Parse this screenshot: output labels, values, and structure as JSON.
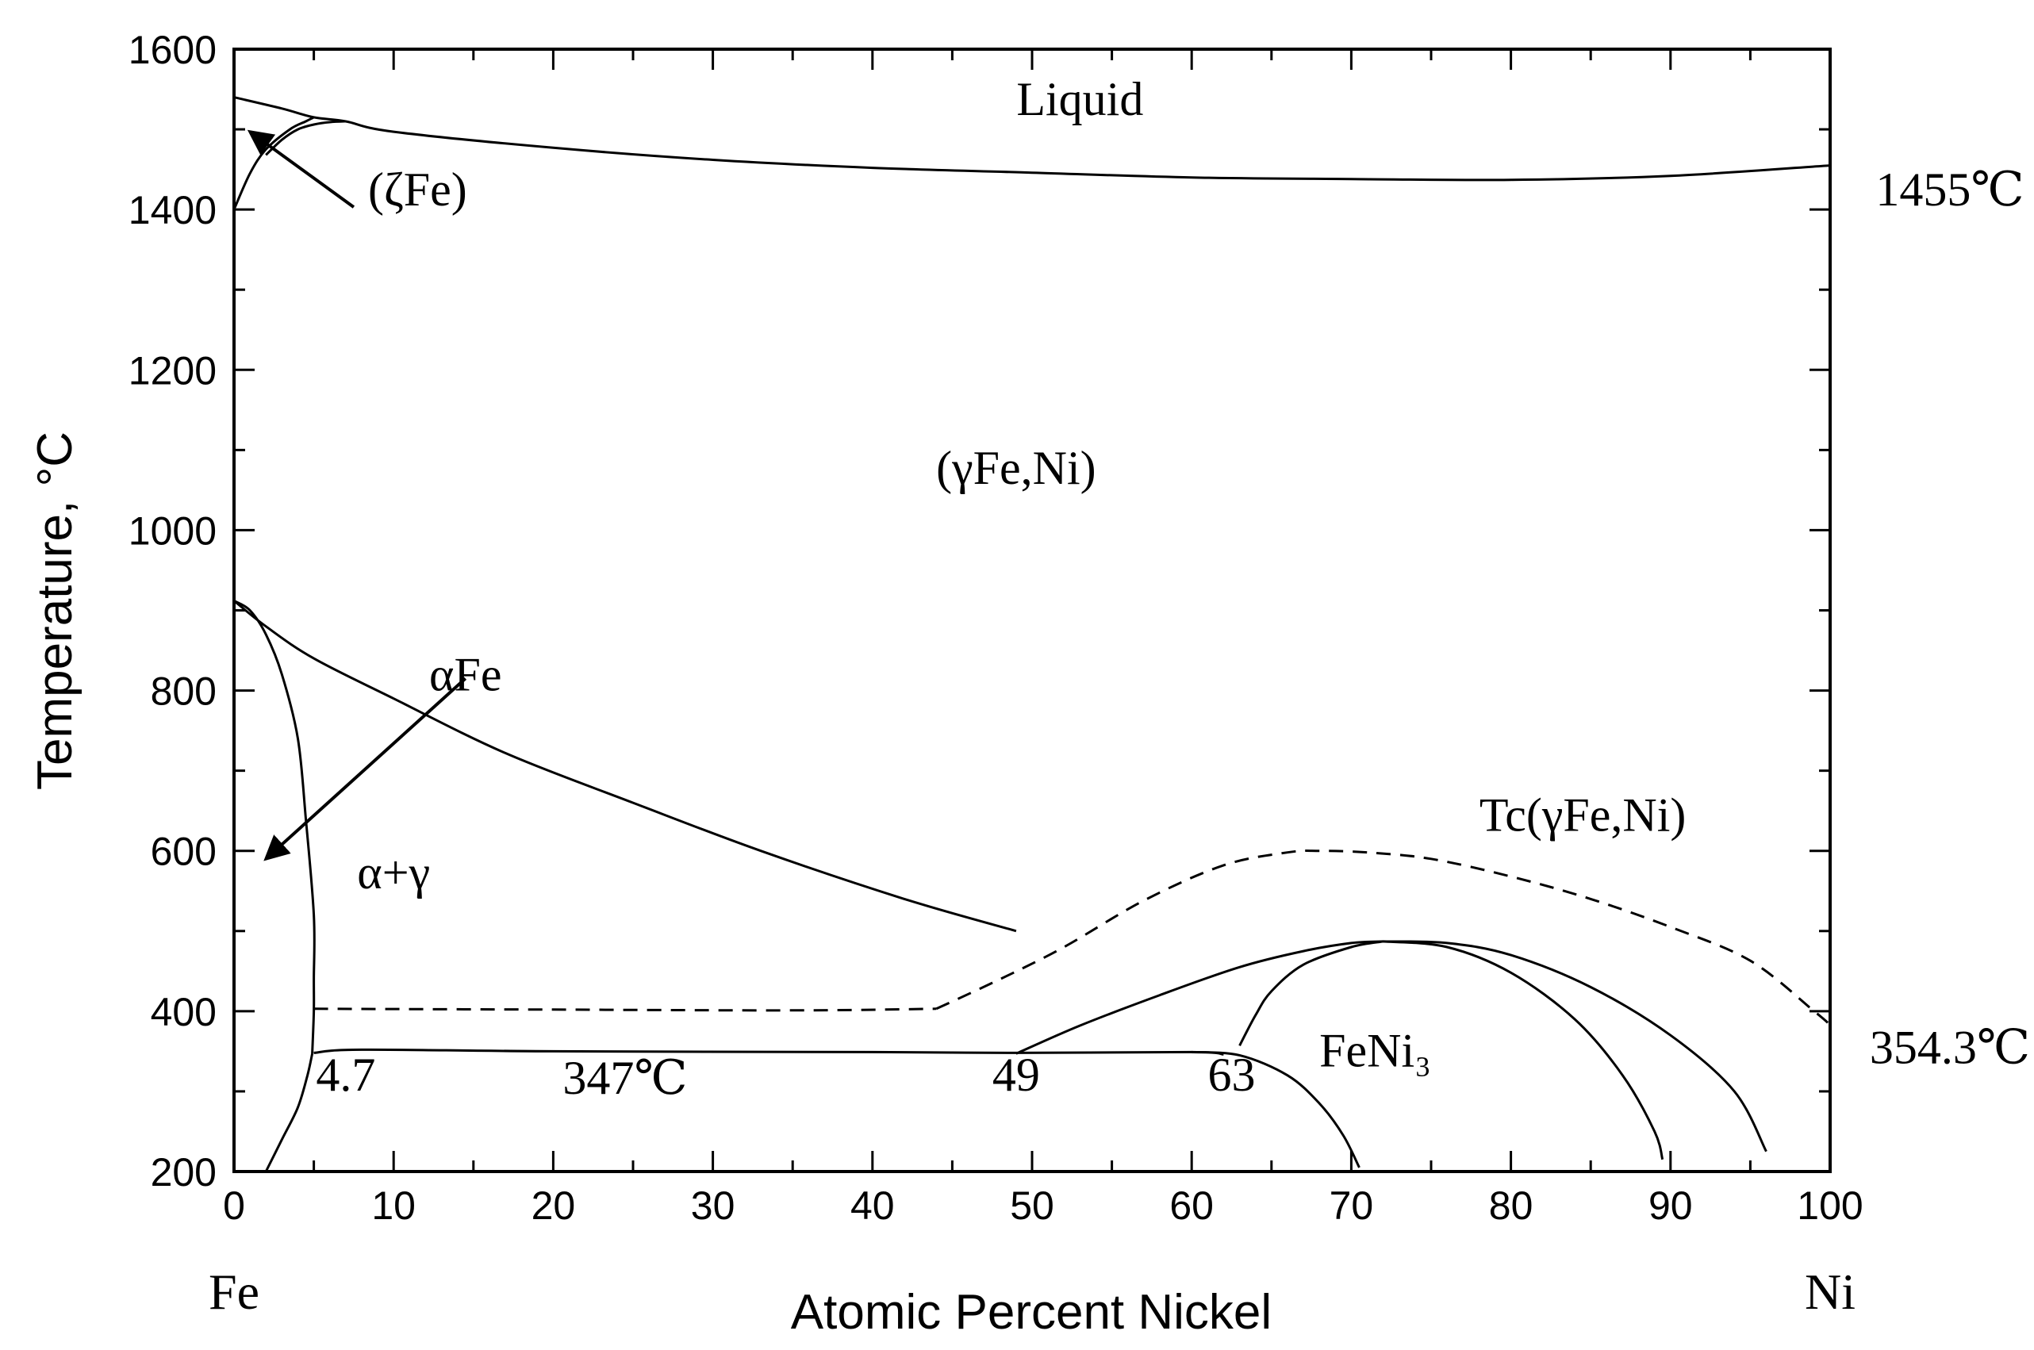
{
  "chart_data": {
    "type": "line",
    "xlabel": "Atomic Percent Nickel",
    "ylabel": "Temperature, °C",
    "xlim": [
      0,
      100
    ],
    "ylim": [
      200,
      1600
    ],
    "x_ticks": [
      0,
      10,
      20,
      30,
      40,
      50,
      60,
      70,
      80,
      90,
      100
    ],
    "y_ticks": [
      200,
      400,
      600,
      800,
      1000,
      1200,
      1400,
      1600
    ],
    "end_labels": {
      "left": "Fe",
      "right": "Ni"
    },
    "grid": false,
    "series": [
      {
        "style": "solid",
        "points": [
          [
            0,
            1540
          ],
          [
            3,
            1526
          ],
          [
            5,
            1515
          ],
          [
            7,
            1510
          ],
          [
            10,
            1497
          ],
          [
            20,
            1477
          ],
          [
            30,
            1462
          ],
          [
            40,
            1452
          ],
          [
            50,
            1446
          ],
          [
            60,
            1440
          ],
          [
            70,
            1438
          ],
          [
            80,
            1437
          ],
          [
            90,
            1442
          ],
          [
            100,
            1455
          ]
        ]
      },
      {
        "style": "solid",
        "points": [
          [
            5,
            1515
          ],
          [
            4.5,
            1510
          ],
          [
            3.5,
            1500
          ],
          [
            2,
            1475
          ],
          [
            1,
            1445
          ],
          [
            0,
            1400
          ]
        ]
      },
      {
        "style": "solid",
        "points": [
          [
            7,
            1510
          ],
          [
            6,
            1509
          ],
          [
            5,
            1506
          ],
          [
            4,
            1500
          ],
          [
            3,
            1487
          ],
          [
            2,
            1468
          ]
        ]
      },
      {
        "style": "solid",
        "points": [
          [
            0,
            912
          ],
          [
            2,
            880
          ],
          [
            5,
            840
          ],
          [
            10,
            790
          ],
          [
            17,
            722
          ],
          [
            25,
            660
          ],
          [
            33,
            600
          ],
          [
            42,
            540
          ],
          [
            49,
            500
          ]
        ]
      },
      {
        "style": "solid",
        "points": [
          [
            0,
            912
          ],
          [
            1,
            900
          ],
          [
            2,
            870
          ],
          [
            3,
            820
          ],
          [
            4,
            740
          ],
          [
            4.5,
            640
          ],
          [
            5,
            520
          ],
          [
            5,
            440
          ],
          [
            5,
            400
          ],
          [
            4.9,
            347
          ]
        ]
      },
      {
        "style": "solid",
        "points": [
          [
            4.9,
            347
          ],
          [
            4.6,
            320
          ],
          [
            4,
            280
          ],
          [
            3,
            240
          ],
          [
            2,
            200
          ]
        ]
      },
      {
        "style": "solid",
        "points": [
          [
            5,
            348
          ],
          [
            8,
            352
          ],
          [
            20,
            350
          ],
          [
            40,
            349
          ],
          [
            49,
            348
          ],
          [
            60,
            349
          ],
          [
            62,
            346
          ]
        ]
      },
      {
        "style": "solid",
        "points": [
          [
            49,
            347
          ],
          [
            53,
            382
          ],
          [
            58,
            420
          ],
          [
            63,
            455
          ],
          [
            67,
            475
          ],
          [
            70,
            485
          ],
          [
            72,
            487
          ]
        ]
      },
      {
        "style": "solid",
        "points": [
          [
            63,
            357
          ],
          [
            64,
            395
          ],
          [
            65,
            425
          ],
          [
            67,
            458
          ],
          [
            70,
            480
          ],
          [
            72,
            487
          ]
        ]
      },
      {
        "style": "solid",
        "points": [
          [
            72,
            487
          ],
          [
            76,
            480
          ],
          [
            80,
            448
          ],
          [
            84,
            390
          ],
          [
            87,
            320
          ],
          [
            89,
            250
          ],
          [
            89.5,
            215
          ]
        ]
      },
      {
        "style": "solid",
        "points": [
          [
            72,
            487
          ],
          [
            76,
            485
          ],
          [
            80,
            470
          ],
          [
            85,
            430
          ],
          [
            90,
            370
          ],
          [
            94,
            300
          ],
          [
            96,
            225
          ]
        ]
      },
      {
        "style": "solid",
        "points": [
          [
            60,
            349
          ],
          [
            63,
            345
          ],
          [
            66,
            320
          ],
          [
            68,
            285
          ],
          [
            69.5,
            245
          ],
          [
            70.5,
            205
          ]
        ]
      },
      {
        "style": "dashed",
        "points": [
          [
            5,
            403
          ],
          [
            20,
            402
          ],
          [
            35,
            401
          ],
          [
            44,
            403
          ]
        ]
      },
      {
        "style": "dashed",
        "points": [
          [
            44,
            403
          ],
          [
            48,
            440
          ],
          [
            52,
            480
          ],
          [
            57,
            538
          ],
          [
            62,
            582
          ],
          [
            66,
            598
          ],
          [
            68,
            600
          ],
          [
            71,
            598
          ],
          [
            75,
            590
          ],
          [
            80,
            568
          ],
          [
            85,
            540
          ],
          [
            90,
            505
          ],
          [
            95,
            463
          ],
          [
            99,
            400
          ],
          [
            100,
            383
          ]
        ]
      }
    ],
    "annotations": [
      {
        "text": "Liquid",
        "x": 53,
        "y": 1518
      },
      {
        "text": "(ζFe)",
        "x": 11.5,
        "y": 1405
      },
      {
        "text": "(γFe,Ni)",
        "x": 49,
        "y": 1058
      },
      {
        "text": "αFe",
        "x": 14.5,
        "y": 800
      },
      {
        "text": "α+γ",
        "x": 10,
        "y": 553
      },
      {
        "text": "Tc(γFe,Ni)",
        "x": 84.5,
        "y": 625
      },
      {
        "text": "FeNi₃",
        "x": 71.5,
        "y": 331
      },
      {
        "text": "4.7",
        "x": 7,
        "y": 301
      },
      {
        "text": "347℃",
        "x": 24.5,
        "y": 297
      },
      {
        "text": "49",
        "x": 49,
        "y": 301
      },
      {
        "text": "63",
        "x": 62.5,
        "y": 301
      },
      {
        "text": "1455℃",
        "x": 107.5,
        "y": 1405
      },
      {
        "text": "354.3℃",
        "x": 107.5,
        "y": 335
      }
    ],
    "arrows": [
      {
        "from": [
          7.5,
          1403
        ],
        "to": [
          1,
          1497
        ]
      },
      {
        "from": [
          14.5,
          815
        ],
        "to": [
          2,
          590
        ]
      }
    ]
  }
}
